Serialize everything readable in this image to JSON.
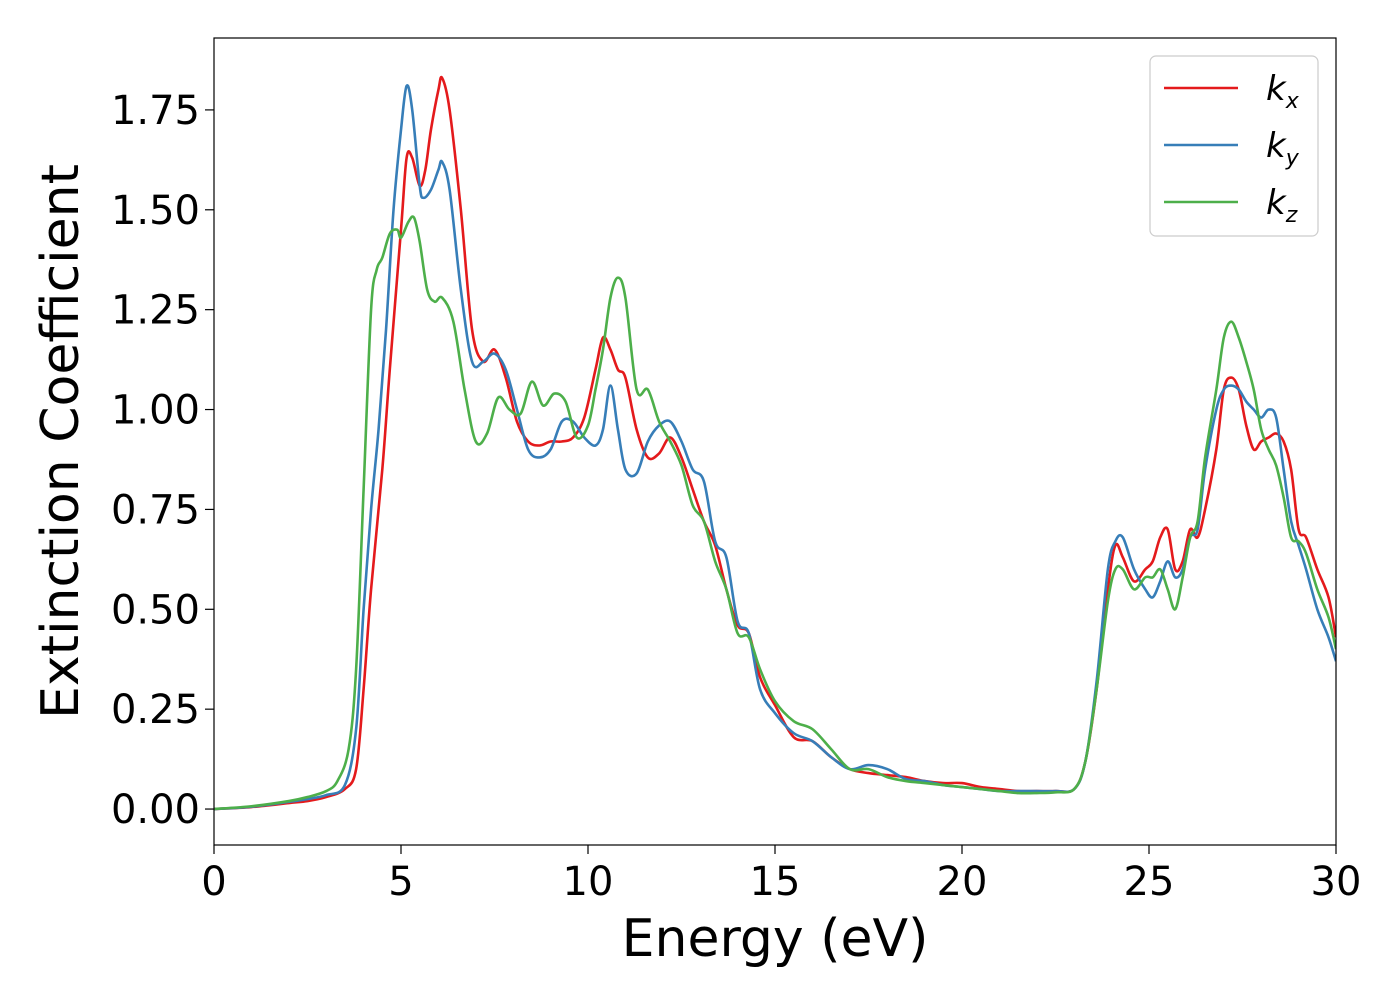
{
  "chart_data": {
    "type": "line",
    "title": "",
    "xlabel": "Energy (eV)",
    "ylabel": "Extinction Coefficient",
    "xlim": [
      0,
      30
    ],
    "ylim": [
      -0.09,
      1.93
    ],
    "xticks": [
      0,
      5,
      10,
      15,
      20,
      25,
      30
    ],
    "xtick_labels": [
      "0",
      "5",
      "10",
      "15",
      "20",
      "25",
      "30"
    ],
    "yticks": [
      0.0,
      0.25,
      0.5,
      0.75,
      1.0,
      1.25,
      1.5,
      1.75
    ],
    "ytick_labels": [
      "0.00",
      "0.25",
      "0.50",
      "0.75",
      "1.00",
      "1.25",
      "1.50",
      "1.75"
    ],
    "grid": false,
    "legend_position": "top-right",
    "series": [
      {
        "name": "k",
        "subscript": "x",
        "color": "#e41a1c",
        "x": [
          0,
          1,
          2,
          2.5,
          3,
          3.5,
          3.8,
          4.0,
          4.2,
          4.5,
          4.7,
          5.0,
          5.15,
          5.3,
          5.5,
          5.65,
          5.8,
          6.0,
          6.1,
          6.3,
          6.6,
          6.9,
          7.2,
          7.5,
          7.8,
          8.1,
          8.4,
          8.7,
          9.0,
          9.3,
          9.6,
          9.9,
          10.2,
          10.4,
          10.6,
          10.8,
          11.0,
          11.3,
          11.6,
          11.9,
          12.2,
          12.5,
          12.8,
          13.1,
          13.4,
          13.7,
          14.0,
          14.3,
          14.6,
          15.0,
          15.5,
          16.0,
          16.5,
          17.0,
          17.5,
          18.0,
          18.5,
          19.0,
          19.5,
          20.0,
          20.5,
          21.0,
          21.5,
          22.0,
          22.5,
          23.0,
          23.3,
          23.6,
          23.9,
          24.1,
          24.3,
          24.6,
          24.9,
          25.1,
          25.3,
          25.5,
          25.7,
          25.9,
          26.1,
          26.3,
          26.5,
          26.8,
          27.0,
          27.2,
          27.4,
          27.6,
          27.8,
          28.0,
          28.2,
          28.4,
          28.6,
          28.8,
          29.0,
          29.2,
          29.5,
          29.8,
          30.0
        ],
        "y": [
          0.0,
          0.005,
          0.015,
          0.02,
          0.03,
          0.05,
          0.1,
          0.3,
          0.55,
          0.85,
          1.1,
          1.45,
          1.63,
          1.63,
          1.56,
          1.6,
          1.7,
          1.8,
          1.83,
          1.75,
          1.5,
          1.2,
          1.12,
          1.15,
          1.08,
          0.97,
          0.92,
          0.91,
          0.92,
          0.92,
          0.93,
          0.98,
          1.1,
          1.18,
          1.15,
          1.1,
          1.08,
          0.95,
          0.88,
          0.89,
          0.93,
          0.88,
          0.8,
          0.72,
          0.66,
          0.55,
          0.46,
          0.44,
          0.33,
          0.26,
          0.18,
          0.17,
          0.13,
          0.1,
          0.09,
          0.085,
          0.08,
          0.07,
          0.065,
          0.065,
          0.055,
          0.05,
          0.045,
          0.045,
          0.045,
          0.05,
          0.12,
          0.3,
          0.55,
          0.66,
          0.63,
          0.57,
          0.6,
          0.62,
          0.68,
          0.7,
          0.6,
          0.62,
          0.7,
          0.68,
          0.75,
          0.9,
          1.05,
          1.08,
          1.05,
          0.96,
          0.9,
          0.92,
          0.93,
          0.94,
          0.92,
          0.85,
          0.7,
          0.68,
          0.6,
          0.53,
          0.43
        ]
      },
      {
        "name": "k",
        "subscript": "y",
        "color": "#377eb8",
        "x": [
          0,
          1,
          2,
          2.5,
          3,
          3.5,
          3.8,
          4.0,
          4.2,
          4.4,
          4.6,
          4.8,
          5.0,
          5.15,
          5.3,
          5.5,
          5.6,
          5.8,
          6.0,
          6.1,
          6.3,
          6.6,
          6.9,
          7.2,
          7.5,
          7.8,
          8.1,
          8.4,
          8.7,
          9.0,
          9.3,
          9.6,
          9.9,
          10.2,
          10.4,
          10.6,
          10.8,
          11.0,
          11.3,
          11.6,
          11.9,
          12.2,
          12.5,
          12.8,
          13.1,
          13.4,
          13.7,
          14.0,
          14.3,
          14.6,
          15.0,
          15.5,
          16.0,
          16.5,
          17.0,
          17.5,
          18.0,
          18.5,
          19.0,
          19.5,
          20.0,
          20.5,
          21.0,
          21.5,
          22.0,
          22.5,
          23.0,
          23.3,
          23.6,
          23.9,
          24.1,
          24.3,
          24.6,
          24.9,
          25.1,
          25.3,
          25.5,
          25.7,
          25.9,
          26.1,
          26.3,
          26.5,
          26.8,
          27.0,
          27.2,
          27.4,
          27.6,
          27.8,
          28.0,
          28.2,
          28.4,
          28.6,
          28.8,
          29.0,
          29.2,
          29.5,
          29.8,
          30.0
        ],
        "y": [
          0.0,
          0.006,
          0.018,
          0.025,
          0.035,
          0.06,
          0.2,
          0.5,
          0.75,
          0.95,
          1.2,
          1.5,
          1.7,
          1.81,
          1.75,
          1.56,
          1.53,
          1.55,
          1.6,
          1.62,
          1.55,
          1.3,
          1.12,
          1.12,
          1.14,
          1.1,
          1.0,
          0.9,
          0.88,
          0.9,
          0.97,
          0.97,
          0.93,
          0.91,
          0.95,
          1.06,
          0.95,
          0.85,
          0.84,
          0.92,
          0.96,
          0.97,
          0.92,
          0.85,
          0.82,
          0.67,
          0.63,
          0.47,
          0.44,
          0.3,
          0.24,
          0.19,
          0.17,
          0.13,
          0.1,
          0.11,
          0.1,
          0.075,
          0.07,
          0.06,
          0.055,
          0.05,
          0.045,
          0.045,
          0.045,
          0.045,
          0.05,
          0.12,
          0.32,
          0.6,
          0.67,
          0.68,
          0.6,
          0.55,
          0.53,
          0.57,
          0.62,
          0.58,
          0.6,
          0.68,
          0.7,
          0.85,
          1.0,
          1.05,
          1.06,
          1.05,
          1.02,
          1.0,
          0.98,
          1.0,
          0.98,
          0.85,
          0.72,
          0.66,
          0.6,
          0.5,
          0.43,
          0.37
        ]
      },
      {
        "name": "k",
        "subscript": "z",
        "color": "#4daf4a",
        "x": [
          0,
          1,
          2,
          2.5,
          3,
          3.3,
          3.6,
          3.8,
          4.0,
          4.2,
          4.35,
          4.5,
          4.7,
          4.9,
          5.0,
          5.2,
          5.35,
          5.5,
          5.7,
          5.9,
          6.1,
          6.4,
          6.7,
          7.0,
          7.3,
          7.6,
          7.9,
          8.2,
          8.5,
          8.8,
          9.1,
          9.4,
          9.7,
          10.0,
          10.2,
          10.4,
          10.6,
          10.8,
          11.0,
          11.3,
          11.6,
          11.9,
          12.2,
          12.5,
          12.8,
          13.1,
          13.4,
          13.7,
          14.0,
          14.3,
          14.6,
          15.0,
          15.5,
          16.0,
          16.5,
          17.0,
          17.5,
          18.0,
          18.5,
          19.0,
          19.5,
          20.0,
          20.5,
          21.0,
          21.5,
          22.0,
          22.5,
          23.0,
          23.3,
          23.6,
          23.9,
          24.1,
          24.3,
          24.6,
          24.9,
          25.1,
          25.3,
          25.5,
          25.7,
          25.9,
          26.1,
          26.3,
          26.5,
          26.8,
          27.0,
          27.2,
          27.4,
          27.6,
          27.8,
          28.0,
          28.2,
          28.4,
          28.6,
          28.8,
          29.0,
          29.2,
          29.5,
          29.8,
          30.0
        ],
        "y": [
          0.0,
          0.007,
          0.02,
          0.03,
          0.045,
          0.07,
          0.15,
          0.35,
          0.8,
          1.25,
          1.35,
          1.38,
          1.44,
          1.45,
          1.43,
          1.47,
          1.48,
          1.42,
          1.3,
          1.27,
          1.28,
          1.22,
          1.05,
          0.92,
          0.94,
          1.03,
          1.0,
          0.99,
          1.07,
          1.01,
          1.04,
          1.02,
          0.93,
          0.96,
          1.05,
          1.15,
          1.28,
          1.33,
          1.28,
          1.05,
          1.05,
          0.97,
          0.92,
          0.86,
          0.76,
          0.72,
          0.62,
          0.55,
          0.44,
          0.43,
          0.35,
          0.27,
          0.22,
          0.2,
          0.15,
          0.1,
          0.1,
          0.08,
          0.07,
          0.065,
          0.06,
          0.055,
          0.05,
          0.045,
          0.04,
          0.04,
          0.042,
          0.05,
          0.12,
          0.3,
          0.52,
          0.6,
          0.6,
          0.55,
          0.58,
          0.58,
          0.6,
          0.55,
          0.5,
          0.58,
          0.68,
          0.72,
          0.88,
          1.05,
          1.18,
          1.22,
          1.18,
          1.12,
          1.05,
          0.95,
          0.9,
          0.86,
          0.78,
          0.68,
          0.67,
          0.64,
          0.55,
          0.48,
          0.4
        ]
      }
    ]
  }
}
